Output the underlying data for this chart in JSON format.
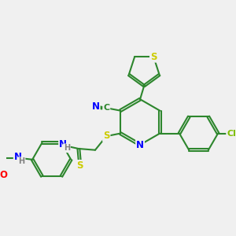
{
  "bg_color": "#f0f0f0",
  "bond_color": "#2d862d",
  "atom_colors": {
    "N": "#0000ff",
    "S": "#cccc00",
    "O": "#ff0000",
    "Cl": "#7fbf00",
    "C": "#2d862d",
    "H": "#808080"
  },
  "line_width": 1.5,
  "font_size": 8.5
}
